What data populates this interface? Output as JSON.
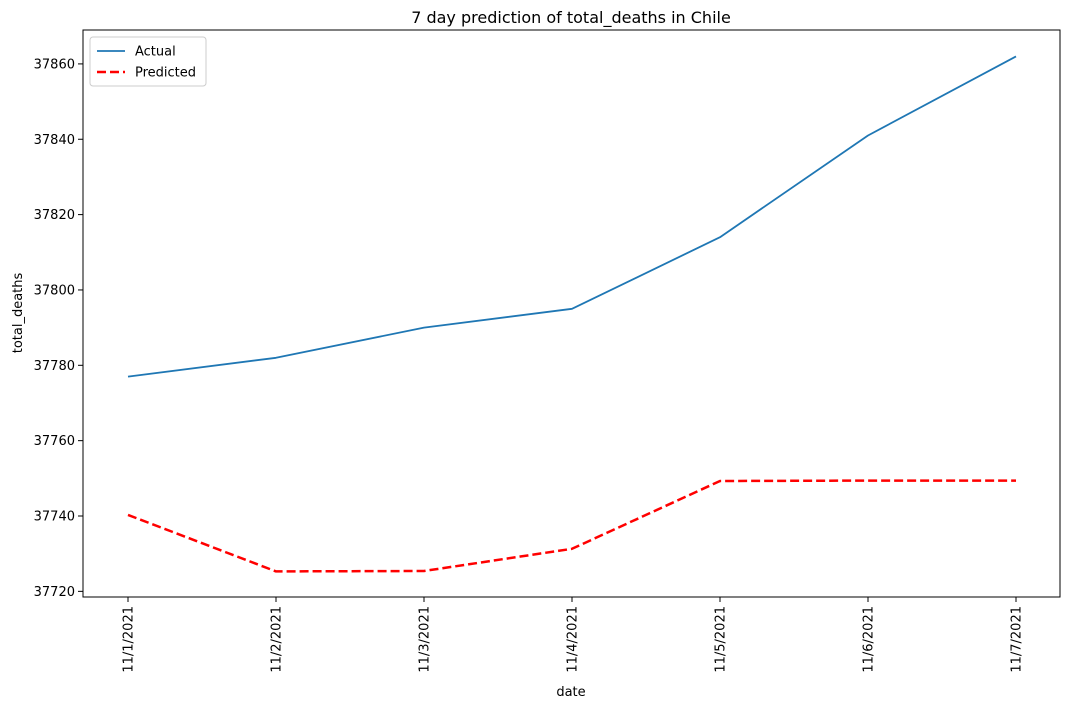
{
  "chart_data": {
    "type": "line",
    "title": "7 day prediction of total_deaths in Chile",
    "xlabel": "date",
    "ylabel": "total_deaths",
    "categories": [
      "11/1/2021",
      "11/2/2021",
      "11/3/2021",
      "11/4/2021",
      "11/5/2021",
      "11/6/2021",
      "11/7/2021"
    ],
    "yticks": [
      37720,
      37740,
      37760,
      37780,
      37800,
      37820,
      37840,
      37860
    ],
    "ylim": [
      37718.5,
      37869
    ],
    "grid": false,
    "legend_position": "top-left",
    "series": [
      {
        "name": "Actual",
        "color": "#1f77b4",
        "dash": "solid",
        "values": [
          37777,
          37782,
          37790,
          37795,
          37814,
          37841,
          37862
        ]
      },
      {
        "name": "Predicted",
        "color": "#ff0000",
        "dash": "dashed",
        "values": [
          37740.3,
          37725.3,
          37725.4,
          37731.3,
          37749.3,
          37749.4,
          37749.4
        ]
      }
    ]
  }
}
